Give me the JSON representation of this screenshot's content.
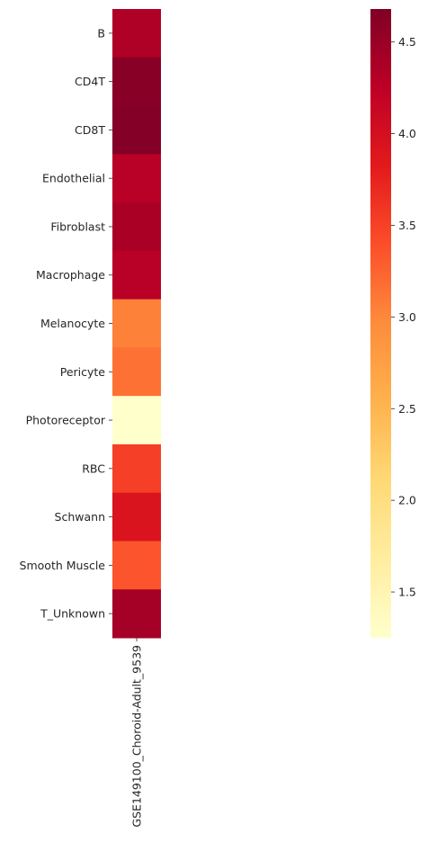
{
  "chart_data": {
    "type": "heatmap",
    "title": "",
    "xlabel": "",
    "ylabel": "",
    "columns": [
      "GSE149100_Choroid-Adult_9539"
    ],
    "rows": [
      "B",
      "CD4T",
      "CD8T",
      "Endothelial",
      "Fibroblast",
      "Macrophage",
      "Melanocyte",
      "Pericyte",
      "Photoreceptor",
      "RBC",
      "Schwann",
      "Smooth Muscle",
      "T_Unknown"
    ],
    "values": [
      [
        4.35
      ],
      [
        4.62
      ],
      [
        4.65
      ],
      [
        4.28
      ],
      [
        4.38
      ],
      [
        4.28
      ],
      [
        3.05
      ],
      [
        3.15
      ],
      [
        1.25
      ],
      [
        3.52
      ],
      [
        3.92
      ],
      [
        3.35
      ],
      [
        4.42
      ]
    ],
    "colormap": "YlOrRd",
    "colorbar": {
      "min": 1.25,
      "max": 4.68,
      "ticks": [
        1.5,
        2.0,
        2.5,
        3.0,
        3.5,
        4.0,
        4.5
      ],
      "tick_labels": [
        "1.5",
        "2.0",
        "2.5",
        "3.0",
        "3.5",
        "4.0",
        "4.5"
      ]
    }
  }
}
